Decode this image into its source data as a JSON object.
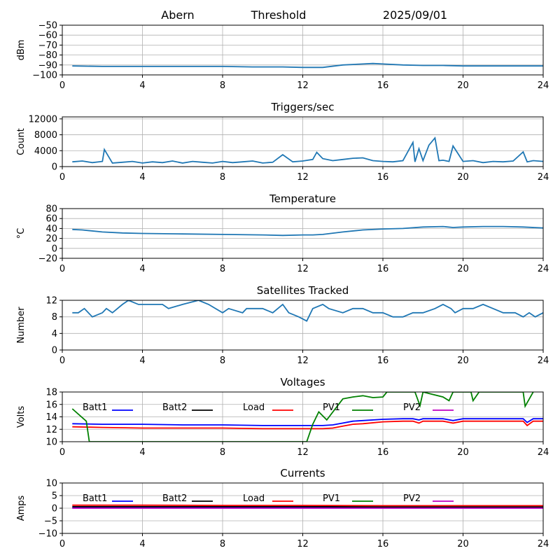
{
  "header": {
    "station": "Abern",
    "mode": "Threshold",
    "date": "2025/09/01"
  },
  "colors": {
    "series_default": "#1f77b4",
    "batt1": "#0000ff",
    "batt2": "#000000",
    "load": "#ff0000",
    "pv1": "#008000",
    "pv2": "#c000c0",
    "grid": "#b0b0b0"
  },
  "chart_data": [
    {
      "type": "line",
      "title": "",
      "ylabel": "dBm",
      "xlim": [
        0,
        24
      ],
      "xticks": [
        0,
        4,
        8,
        12,
        16,
        20,
        24
      ],
      "ylim": [
        -100,
        -50
      ],
      "yticks": [
        -100,
        -90,
        -80,
        -70,
        -60,
        -50
      ],
      "grid": true,
      "series": [
        {
          "x": [
            0.5,
            2,
            4,
            6,
            8,
            9.5,
            11,
            12,
            13,
            14,
            15,
            15.5,
            16,
            17,
            18,
            19,
            20,
            21,
            22,
            24
          ],
          "y": [
            -91,
            -91.5,
            -91.5,
            -91.5,
            -91.5,
            -92,
            -92,
            -92.5,
            -92.5,
            -90,
            -89,
            -88.5,
            -89,
            -90,
            -90.5,
            -90.5,
            -91,
            -91,
            -91,
            -91
          ]
        }
      ]
    },
    {
      "type": "line",
      "title": "Triggers/sec",
      "ylabel": "Count",
      "xlim": [
        0,
        24
      ],
      "xticks": [
        0,
        4,
        8,
        12,
        16,
        20,
        24
      ],
      "ylim": [
        0,
        12500
      ],
      "yticks": [
        0,
        4000,
        8000,
        12000
      ],
      "grid": true,
      "series": [
        {
          "x": [
            0.5,
            1.0,
            1.5,
            2.0,
            2.1,
            2.5,
            3.0,
            3.5,
            4.0,
            4.5,
            5.0,
            5.5,
            6.0,
            6.5,
            7.0,
            7.5,
            8.0,
            8.5,
            9.0,
            9.5,
            10.0,
            10.5,
            11.0,
            11.5,
            12.0,
            12.5,
            12.7,
            13.0,
            13.5,
            14.0,
            14.5,
            15.0,
            15.5,
            16.0,
            16.5,
            17.0,
            17.5,
            17.6,
            17.8,
            18.0,
            18.3,
            18.6,
            18.8,
            19.0,
            19.3,
            19.5,
            20.0,
            20.5,
            21.0,
            21.5,
            22.0,
            22.5,
            23.0,
            23.2,
            23.5,
            24.0
          ],
          "y": [
            1200,
            1400,
            1000,
            1300,
            4300,
            900,
            1100,
            1300,
            900,
            1200,
            1000,
            1400,
            900,
            1300,
            1100,
            900,
            1300,
            1000,
            1200,
            1400,
            900,
            1100,
            3000,
            1200,
            1400,
            1800,
            3600,
            2000,
            1500,
            1800,
            2100,
            2200,
            1500,
            1300,
            1200,
            1500,
            6100,
            1200,
            4500,
            1500,
            5400,
            7200,
            1500,
            1600,
            1300,
            5200,
            1300,
            1500,
            1000,
            1300,
            1200,
            1400,
            3700,
            1200,
            1500,
            1300
          ]
        }
      ]
    },
    {
      "type": "line",
      "title": "Temperature",
      "ylabel": "°C",
      "xlim": [
        0,
        24
      ],
      "xticks": [
        0,
        4,
        8,
        12,
        16,
        20,
        24
      ],
      "ylim": [
        -20,
        80
      ],
      "yticks": [
        -20,
        0,
        20,
        40,
        60,
        80
      ],
      "grid": true,
      "series": [
        {
          "x": [
            0.5,
            1,
            2,
            3,
            4,
            6,
            8,
            10,
            11,
            12,
            12.5,
            13,
            14,
            15,
            16,
            17,
            18,
            19,
            19.5,
            20,
            21,
            22,
            23,
            24
          ],
          "y": [
            38,
            37,
            33,
            31,
            30,
            29,
            28,
            27,
            26,
            27,
            27,
            28,
            33,
            37,
            39,
            40,
            43,
            44,
            42,
            43,
            44,
            44,
            43,
            41
          ]
        }
      ]
    },
    {
      "type": "line",
      "title": "Satellites Tracked",
      "ylabel": "Number",
      "xlim": [
        0,
        24
      ],
      "xticks": [
        0,
        4,
        8,
        12,
        16,
        20,
        24
      ],
      "ylim": [
        0,
        12
      ],
      "yticks": [
        0,
        4,
        8,
        12
      ],
      "grid": true,
      "series": [
        {
          "x": [
            0.5,
            0.8,
            1.1,
            1.3,
            1.5,
            2.0,
            2.2,
            2.5,
            3.0,
            3.3,
            3.8,
            4.5,
            5.0,
            5.3,
            6.0,
            6.8,
            7.3,
            8.0,
            8.3,
            9.0,
            9.2,
            10.0,
            10.5,
            11.0,
            11.3,
            11.8,
            12.2,
            12.5,
            13.0,
            13.3,
            14.0,
            14.5,
            15.0,
            15.5,
            16.0,
            16.5,
            17.0,
            17.5,
            18.0,
            18.6,
            19.0,
            19.4,
            19.6,
            20.0,
            20.5,
            21.0,
            21.5,
            22.0,
            22.6,
            23.0,
            23.3,
            23.6,
            24.0
          ],
          "y": [
            9,
            9,
            10,
            9,
            8,
            9,
            10,
            9,
            11,
            12,
            11,
            11,
            11,
            10,
            11,
            12,
            11,
            9,
            10,
            9,
            10,
            10,
            9,
            11,
            9,
            8,
            7,
            10,
            11,
            10,
            9,
            10,
            10,
            9,
            9,
            8,
            8,
            9,
            9,
            10,
            11,
            10,
            9,
            10,
            10,
            11,
            10,
            9,
            9,
            8,
            9,
            8,
            9
          ]
        }
      ]
    },
    {
      "type": "line",
      "title": "Voltages",
      "ylabel": "Volts",
      "xlim": [
        0,
        24
      ],
      "xticks": [
        0,
        4,
        8,
        12,
        16,
        20,
        24
      ],
      "ylim": [
        10,
        18
      ],
      "yticks": [
        10,
        12,
        14,
        16,
        18
      ],
      "grid": true,
      "series": [
        {
          "name": "Batt1",
          "x": [
            0.5,
            2,
            4,
            6,
            8,
            10,
            12,
            13,
            13.5,
            14,
            14.5,
            15,
            16,
            17,
            17.5,
            17.8,
            18,
            19,
            19.5,
            20,
            21,
            22,
            23,
            23.2,
            23.5,
            24
          ],
          "y": [
            12.9,
            12.8,
            12.8,
            12.7,
            12.7,
            12.6,
            12.6,
            12.6,
            12.7,
            13.0,
            13.3,
            13.4,
            13.6,
            13.7,
            13.7,
            13.5,
            13.7,
            13.7,
            13.4,
            13.7,
            13.7,
            13.7,
            13.7,
            13.1,
            13.7,
            13.7
          ]
        },
        {
          "name": "Batt2",
          "x": [],
          "y": []
        },
        {
          "name": "Load",
          "x": [
            0.5,
            2,
            4,
            6,
            8,
            10,
            12,
            13,
            13.5,
            14,
            14.5,
            15,
            16,
            17,
            17.5,
            17.8,
            18,
            19,
            19.5,
            20,
            21,
            22,
            23,
            23.2,
            23.5,
            24
          ],
          "y": [
            12.4,
            12.3,
            12.2,
            12.2,
            12.2,
            12.1,
            12.1,
            12.1,
            12.2,
            12.5,
            12.8,
            12.9,
            13.2,
            13.3,
            13.3,
            13.0,
            13.3,
            13.3,
            13.0,
            13.3,
            13.3,
            13.3,
            13.3,
            12.6,
            13.3,
            13.3
          ]
        },
        {
          "name": "PV1",
          "x": [
            0.5,
            1.2,
            1.35,
            12.2,
            12.5,
            12.8,
            13.2,
            14,
            14.5,
            15,
            15.5,
            16,
            16.2,
            17.6,
            17.85,
            18.0,
            19.0,
            19.3,
            19.5,
            20.4,
            20.5,
            20.8,
            21.3,
            23.0,
            23.1,
            23.5
          ],
          "y": [
            15.3,
            13.3,
            10.0,
            10.0,
            12.8,
            14.8,
            13.5,
            16.9,
            17.2,
            17.4,
            17.1,
            17.2,
            18.0,
            18.0,
            15.8,
            18.0,
            17.2,
            16.6,
            18.0,
            18.0,
            16.6,
            18.0,
            18.0,
            18.0,
            15.7,
            18.0
          ]
        },
        {
          "name": "PV2",
          "x": [],
          "y": []
        }
      ]
    },
    {
      "type": "line",
      "title": "Currents",
      "ylabel": "Amps",
      "xlim": [
        0,
        24
      ],
      "xticks": [
        0,
        4,
        8,
        12,
        16,
        20,
        24
      ],
      "ylim": [
        -10,
        10
      ],
      "yticks": [
        -10,
        -5,
        0,
        5,
        10
      ],
      "grid": true,
      "series": [
        {
          "name": "Batt1",
          "x": [
            0.5,
            4,
            8,
            12,
            16,
            20,
            24
          ],
          "y": [
            0.2,
            0.2,
            0.2,
            0.2,
            0.2,
            0.2,
            0.2
          ]
        },
        {
          "name": "Batt2",
          "x": [
            0.5,
            4,
            8,
            12,
            16,
            20,
            24
          ],
          "y": [
            0.6,
            0.6,
            0.6,
            0.6,
            0.5,
            0.5,
            0.5
          ]
        },
        {
          "name": "Load",
          "x": [
            0.5,
            4,
            8,
            12,
            16,
            20,
            24
          ],
          "y": [
            1.2,
            1.2,
            1.1,
            1.1,
            1.0,
            1.0,
            1.0
          ]
        },
        {
          "name": "PV1",
          "x": [],
          "y": []
        },
        {
          "name": "PV2",
          "x": [
            0.5,
            4,
            8,
            12,
            16,
            20,
            24
          ],
          "y": [
            0.0,
            0.0,
            0.0,
            0.0,
            0.0,
            0.0,
            0.0
          ]
        }
      ]
    }
  ]
}
